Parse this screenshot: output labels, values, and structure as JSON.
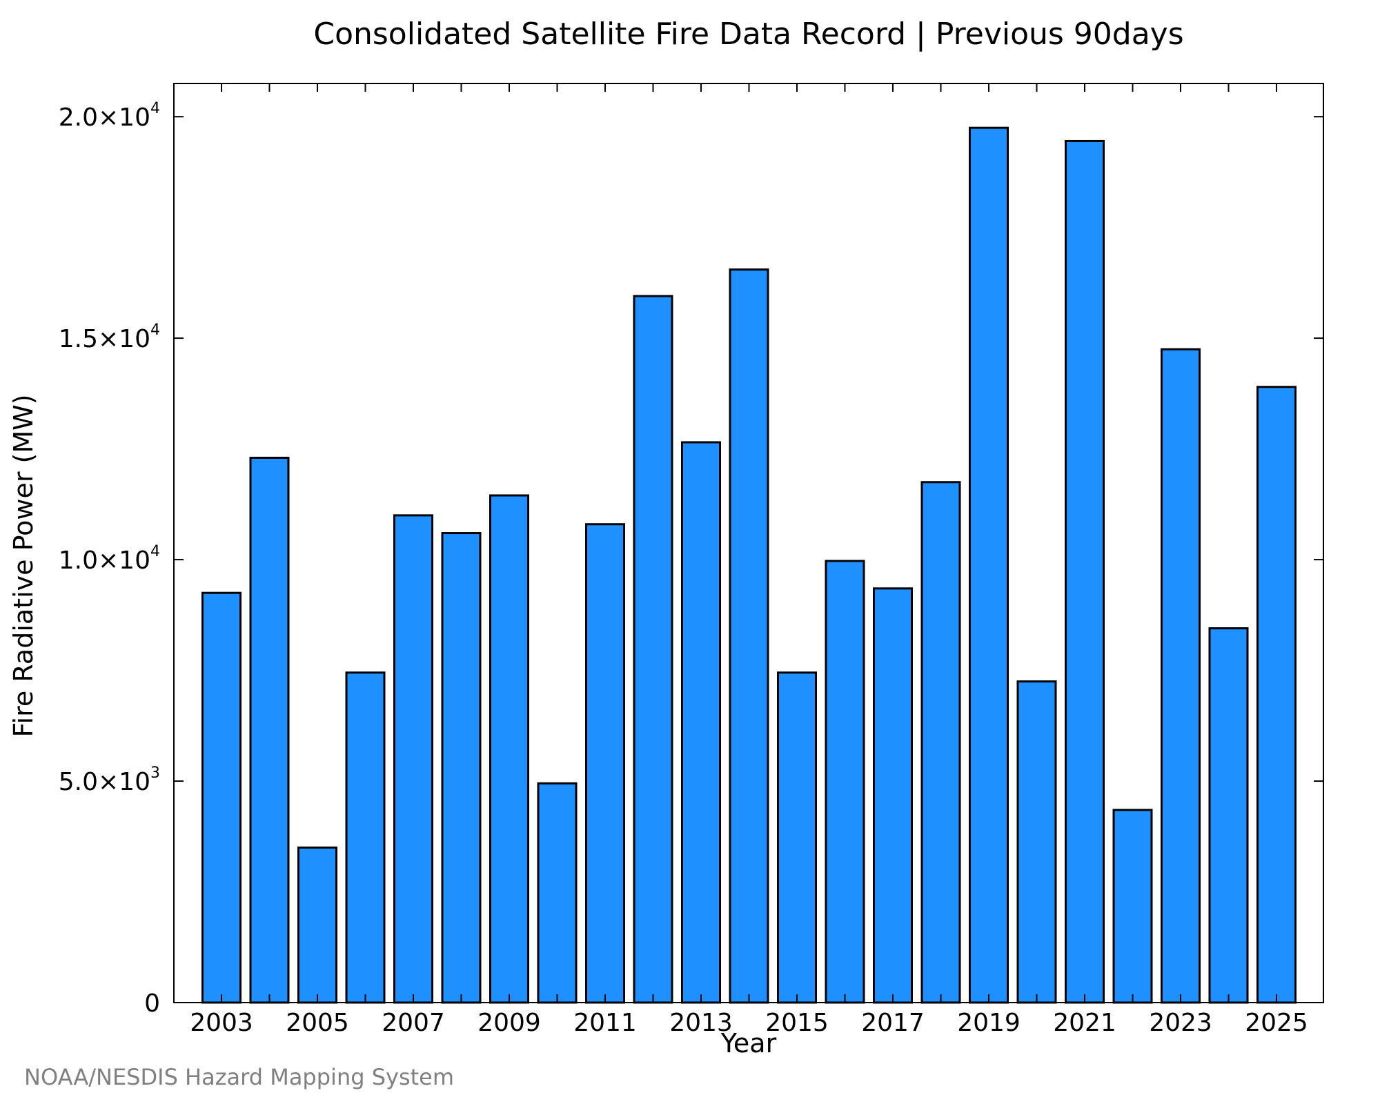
{
  "chart_data": {
    "type": "bar",
    "title": "Consolidated Satellite Fire Data Record | Previous 90days",
    "xlabel": "Year",
    "ylabel": "Fire Radiative Power (MW)",
    "ylim": [
      0,
      20750
    ],
    "categories": [
      "2003",
      "2004",
      "2005",
      "2006",
      "2007",
      "2008",
      "2009",
      "2010",
      "2011",
      "2012",
      "2013",
      "2014",
      "2015",
      "2016",
      "2017",
      "2018",
      "2019",
      "2020",
      "2021",
      "2022",
      "2023",
      "2024",
      "2025"
    ],
    "values": [
      9250,
      12300,
      3500,
      7450,
      11000,
      10600,
      11450,
      4950,
      10800,
      15950,
      12650,
      16550,
      7450,
      9970,
      9350,
      11750,
      19750,
      7250,
      19450,
      4350,
      14750,
      8450,
      13900
    ],
    "x_tick_labels": [
      "2003",
      "2005",
      "2007",
      "2009",
      "2011",
      "2013",
      "2015",
      "2017",
      "2019",
      "2021",
      "2023",
      "2025"
    ],
    "y_ticks": [
      {
        "value": 0,
        "mantissa": "0",
        "exp": ""
      },
      {
        "value": 5000,
        "mantissa": "5.0×10",
        "exp": "3"
      },
      {
        "value": 10000,
        "mantissa": "1.0×10",
        "exp": "4"
      },
      {
        "value": 15000,
        "mantissa": "1.5×10",
        "exp": "4"
      },
      {
        "value": 20000,
        "mantissa": "2.0×10",
        "exp": "4"
      }
    ],
    "bar_color": "#1e90ff",
    "grid": false,
    "legend": "none"
  },
  "credit": "NOAA/NESDIS Hazard Mapping System"
}
